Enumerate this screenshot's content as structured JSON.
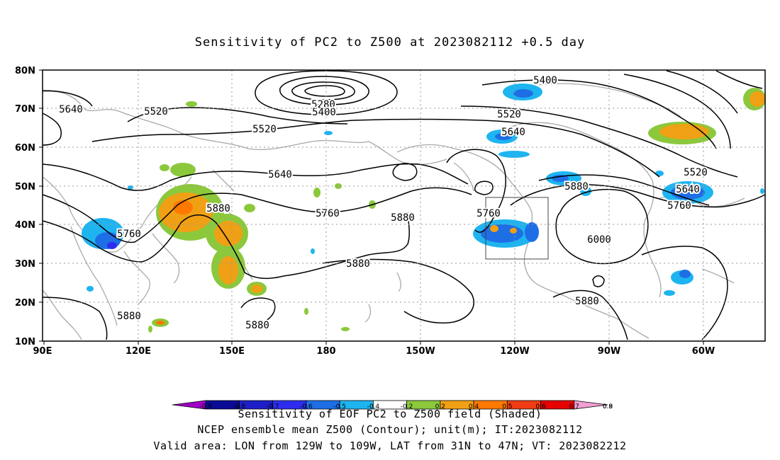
{
  "title": "Sensitivity of PC2 to Z500 at 2023082112 +0.5 day",
  "axes": {
    "lat_labels": [
      "80N",
      "70N",
      "60N",
      "50N",
      "40N",
      "30N",
      "20N",
      "10N"
    ],
    "lon_labels": [
      "90E",
      "120E",
      "150E",
      "180",
      "150W",
      "120W",
      "90W",
      "60W"
    ]
  },
  "contour_labels": [
    "5640",
    "5520",
    "5520",
    "5640",
    "5760",
    "5880",
    "5760",
    "5880",
    "5880",
    "5880",
    "5280",
    "5400",
    "5400",
    "5520",
    "5640",
    "5760",
    "5880",
    "6000",
    "5880",
    "5520",
    "5640",
    "5760"
  ],
  "colorbar": {
    "colors": [
      "#a000c8",
      "#0a0a96",
      "#1e1ec8",
      "#2d2df0",
      "#1e6ee6",
      "#1eb4f0",
      "#ffffff",
      "#8cc83c",
      "#f0a014",
      "#ff7800",
      "#f03c14",
      "#e60000",
      "#f0a0d2"
    ],
    "tick_labels": [
      "-0.9",
      "-0.8",
      "-0.7",
      "-0.6",
      "-0.5",
      "-0.4",
      "-0.2",
      "0.2",
      "0.4",
      "0.5",
      "0.6",
      "0.7",
      "0.8",
      "0.9"
    ]
  },
  "captions": {
    "line1": "Sensitivity of EOF PC2 to Z500 field (Shaded)",
    "line2": "NCEP ensemble mean Z500 (Contour); unit(m); IT:2023082112",
    "line3": "Valid area: LON from 129W to 109W, LAT from 31N to 47N; VT: 2023082212"
  }
}
